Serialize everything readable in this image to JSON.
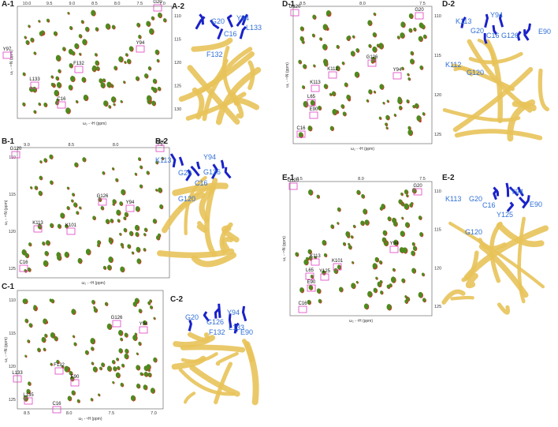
{
  "panels": [
    {
      "label": "A-1",
      "structure_label": "A-2",
      "xticks": [
        "10.0",
        "9.5",
        "9.0",
        "8.5",
        "8.0",
        "7.5",
        "7.0"
      ],
      "yticks": [
        "110",
        "115",
        "120",
        "125",
        "130"
      ],
      "xlabel": "ω₂ - ¹H (ppm)",
      "ylabel": "ω₁ - ¹⁵N (ppm)",
      "peaks": [
        "Y97",
        "L133",
        "F132",
        "C16",
        "Y94",
        "G20"
      ],
      "residues": [
        "G20",
        "Y94",
        "L133",
        "C16",
        "F132"
      ]
    },
    {
      "label": "B-1",
      "structure_label": "B-2",
      "xticks": [
        "9.0",
        "8.5",
        "8.0",
        "7.5"
      ],
      "yticks": [
        "110",
        "115",
        "120",
        "125"
      ],
      "xlabel": "ω₂ - ¹H (ppm)",
      "ylabel": "ω₁ - ¹⁵N (ppm)",
      "peaks": [
        "G120",
        "G20",
        "G126",
        "Y94",
        "K113",
        "K101",
        "C16"
      ],
      "residues": [
        "K113",
        "Y94",
        "G126",
        "G20",
        "C16",
        "G120"
      ]
    },
    {
      "label": "C-1",
      "structure_label": "C-2",
      "xticks": [
        "8.5",
        "8.0",
        "7.5",
        "7.0"
      ],
      "yticks": [
        "110",
        "115",
        "120",
        "125"
      ],
      "xlabel": "ω₂ - ¹H (ppm)",
      "ylabel": "ω₁ - ¹⁵N (ppm)",
      "peaks": [
        "Y94",
        "G126",
        "F132",
        "E90",
        "L133",
        "L135",
        "C16"
      ],
      "residues": [
        "G20",
        "Y94",
        "G126",
        "L133",
        "E90",
        "F132"
      ]
    },
    {
      "label": "D-1",
      "structure_label": "D-2",
      "xticks": [
        "8.5",
        "8.0",
        "7.5"
      ],
      "yticks": [
        "110",
        "115",
        "120",
        "125"
      ],
      "xlabel": "ω₂ - ¹H (ppm)",
      "ylabel": "ω₁ - ¹⁵N (ppm)",
      "peaks": [
        "G120",
        "G20",
        "G126",
        "K112",
        "K113",
        "Y94",
        "L65",
        "E90",
        "C16"
      ],
      "residues": [
        "K113",
        "Y94",
        "G20",
        "C16",
        "G126",
        "E90",
        "K112",
        "G120"
      ]
    },
    {
      "label": "E-1",
      "structure_label": "E-2",
      "xticks": [
        "8.5",
        "8.0",
        "7.5"
      ],
      "yticks": [
        "110",
        "115",
        "120",
        "125"
      ],
      "xlabel": "ω₂ - ¹H (ppm)",
      "ylabel": "ω₁ - ¹⁵N (ppm)",
      "peaks": [
        "G120",
        "G20",
        "K113",
        "K101",
        "L65",
        "Y125",
        "Y94",
        "E90",
        "C16"
      ],
      "residues": [
        "K113",
        "G20",
        "C16",
        "Y94",
        "Y125",
        "E90",
        "G120"
      ]
    }
  ]
}
